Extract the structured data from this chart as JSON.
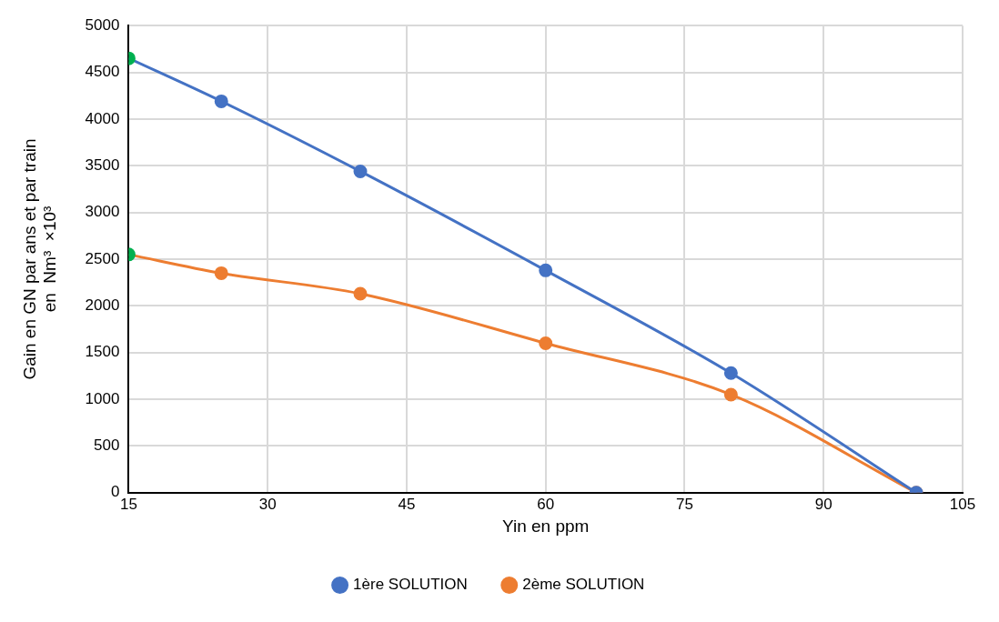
{
  "chart_data": {
    "type": "line",
    "xlabel": "Yin en ppm",
    "ylabel": [
      "Gain en GN par ans et par train",
      "en  Nm³  ×10³"
    ],
    "x": [
      15,
      25,
      40,
      60,
      80,
      100
    ],
    "series": [
      {
        "name": "1ère SOLUTION",
        "color": "#4472c4",
        "colors": [
          "#00b050",
          "#4472c4",
          "#4472c4",
          "#4472c4",
          "#4472c4",
          "#4472c4"
        ],
        "values": [
          4650,
          4190,
          3440,
          2380,
          1280,
          0
        ]
      },
      {
        "name": "2ème SOLUTION",
        "color": "#ed7d31",
        "colors": [
          "#00b050",
          "#ed7d31",
          "#ed7d31",
          "#ed7d31",
          "#ed7d31",
          "#ed7d31"
        ],
        "values": [
          2550,
          2350,
          2130,
          1600,
          1050,
          0
        ]
      }
    ],
    "xlim": [
      15,
      105
    ],
    "xticks": [
      15,
      30,
      45,
      60,
      75,
      90,
      105
    ],
    "ylim": [
      0,
      5000
    ],
    "yticks": [
      0,
      500,
      1000,
      1500,
      2000,
      2500,
      3000,
      3500,
      4000,
      4500,
      5000
    ],
    "grid": true,
    "legend": "bottom",
    "marker": "circle",
    "line_style": "solid"
  }
}
